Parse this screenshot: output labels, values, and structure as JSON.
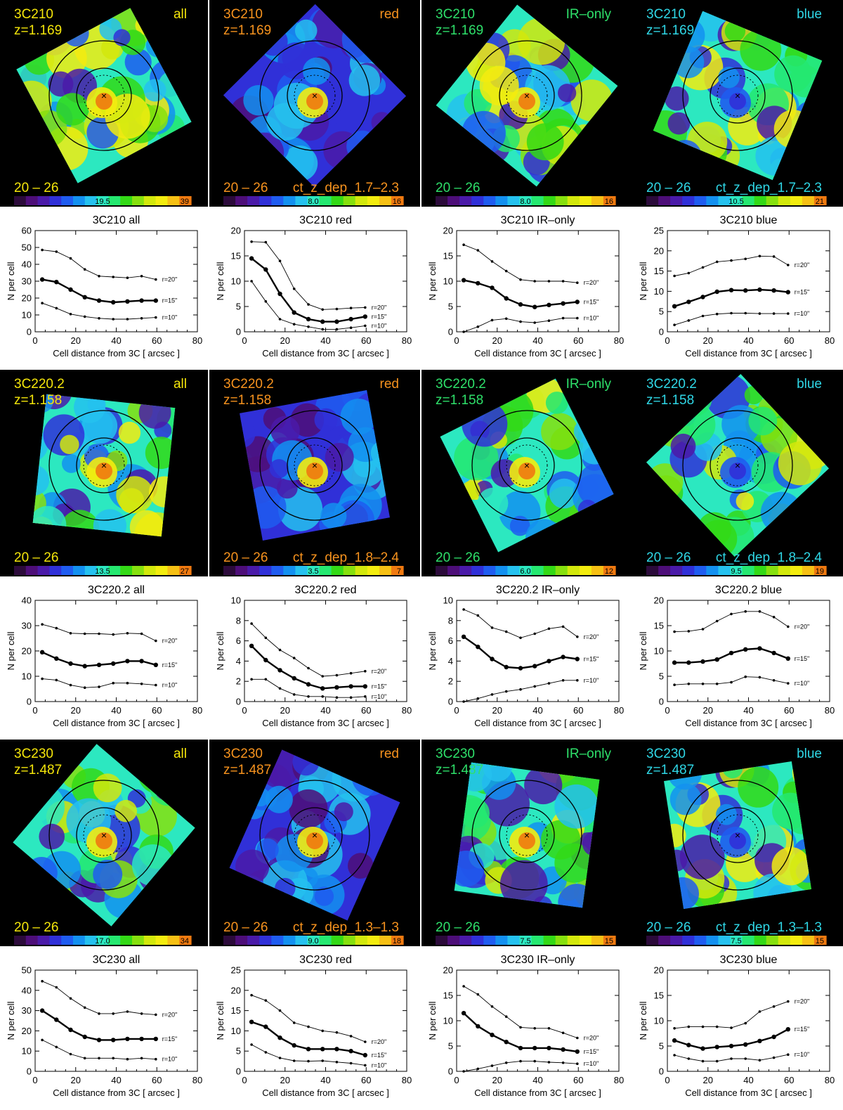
{
  "figure": {
    "xlabel": "Cell distance from 3C  [ arcsec ]",
    "ylabel": "N per cell",
    "xlim": [
      0,
      80
    ],
    "xticks": [
      0,
      20,
      40,
      60,
      80
    ],
    "radius_labels": [
      "r=10\"",
      "r=15\"",
      "r=20\""
    ],
    "mag_range_label": "20 – 26",
    "x_values": [
      3.5,
      10.5,
      17.5,
      24.5,
      31.5,
      38.5,
      45.5,
      52.5,
      59.5
    ]
  },
  "colors": {
    "all": "#f5e60a",
    "red": "#f7931e",
    "IR-only": "#2ee06a",
    "blue": "#2fd7e6"
  },
  "colorbar_colors": [
    "#2b0a3a",
    "#4d0e78",
    "#4a1aa8",
    "#3030d8",
    "#1f5cf0",
    "#1390f0",
    "#25c1ef",
    "#2ce8c0",
    "#25e870",
    "#33d916",
    "#86e00e",
    "#d2e80c",
    "#f3ec0f",
    "#f6c014",
    "#f07a10"
  ],
  "chart_data": [
    {
      "type": "line",
      "id": "3C210-all",
      "source": "3C210",
      "redshift": "z=1.169",
      "panel": "all",
      "title": "3C210  all",
      "ylim": [
        0,
        60
      ],
      "yticks": [
        0,
        10,
        20,
        30,
        40,
        50,
        60
      ],
      "colorbar_mid": "19.5",
      "colorbar_max": "39",
      "ct_label": "",
      "series": [
        {
          "name": "r=20\"",
          "values": [
            48.5,
            47.5,
            43.5,
            37,
            33,
            32.5,
            32,
            33,
            31
          ]
        },
        {
          "name": "r=15\"",
          "values": [
            31,
            29.5,
            25,
            20.5,
            18.5,
            17.5,
            18,
            18.5,
            18.5
          ]
        },
        {
          "name": "r=10\"",
          "values": [
            17,
            14,
            10.5,
            9,
            8,
            7.5,
            7.5,
            8,
            8.5
          ]
        }
      ]
    },
    {
      "type": "line",
      "id": "3C210-red",
      "source": "3C210",
      "redshift": "z=1.169",
      "panel": "red",
      "title": "3C210  red",
      "ylim": [
        0,
        20
      ],
      "yticks": [
        0,
        5,
        10,
        15,
        20
      ],
      "colorbar_mid": "8.0",
      "colorbar_max": "16",
      "ct_label": "ct_z_dep_1.7–2.3",
      "series": [
        {
          "name": "r=20\"",
          "values": [
            17.8,
            17.7,
            14,
            8.5,
            5.4,
            4.4,
            4.5,
            4.7,
            4.8
          ]
        },
        {
          "name": "r=15\"",
          "values": [
            14.5,
            12.3,
            7.5,
            3.8,
            2.5,
            2,
            2,
            2.5,
            3
          ]
        },
        {
          "name": "r=10\"",
          "values": [
            10,
            6,
            2.5,
            1.5,
            1,
            0.5,
            0.5,
            0.8,
            1.2
          ]
        }
      ]
    },
    {
      "type": "line",
      "id": "3C210-IR-only",
      "source": "3C210",
      "redshift": "z=1.169",
      "panel": "IR-only",
      "title": "3C210  IR–only",
      "ylim": [
        0,
        20
      ],
      "yticks": [
        0,
        5,
        10,
        15,
        20
      ],
      "colorbar_mid": "8.0",
      "colorbar_max": "16",
      "ct_label": "",
      "series": [
        {
          "name": "r=20\"",
          "values": [
            17.2,
            16.1,
            13.9,
            12,
            10.3,
            10,
            10,
            10,
            9.7
          ]
        },
        {
          "name": "r=15\"",
          "values": [
            10.2,
            9.6,
            8.7,
            6.6,
            5.4,
            4.9,
            5.3,
            5.6,
            5.9
          ]
        },
        {
          "name": "r=10\"",
          "values": [
            0,
            1,
            2.3,
            2.6,
            2,
            1.8,
            2.2,
            2.7,
            2.7
          ]
        }
      ]
    },
    {
      "type": "line",
      "id": "3C210-blue",
      "source": "3C210",
      "redshift": "z=1.169",
      "panel": "blue",
      "title": "3C210  blue",
      "ylim": [
        0,
        25
      ],
      "yticks": [
        0,
        5,
        10,
        15,
        20,
        25
      ],
      "colorbar_mid": "10.5",
      "colorbar_max": "21",
      "ct_label": "ct_z_dep_1.7–2.3",
      "series": [
        {
          "name": "r=20\"",
          "values": [
            13.8,
            14.5,
            15.9,
            17.3,
            17.6,
            18,
            18.7,
            18.6,
            16.5
          ]
        },
        {
          "name": "r=15\"",
          "values": [
            6.3,
            7.4,
            8.6,
            9.9,
            10.3,
            10.2,
            10.4,
            10.2,
            9.8
          ]
        },
        {
          "name": "r=10\"",
          "values": [
            1.7,
            2.8,
            3.9,
            4.4,
            4.6,
            4.6,
            4.5,
            4.5,
            4.5
          ]
        }
      ]
    },
    {
      "type": "line",
      "id": "3C220.2-all",
      "source": "3C220.2",
      "redshift": "z=1.158",
      "panel": "all",
      "title": "3C220.2  all",
      "ylim": [
        0,
        40
      ],
      "yticks": [
        0,
        10,
        20,
        30,
        40
      ],
      "colorbar_mid": "13.5",
      "colorbar_max": "27",
      "ct_label": "",
      "series": [
        {
          "name": "r=20\"",
          "values": [
            30.5,
            29,
            27,
            26.8,
            26.8,
            26.5,
            27,
            26.8,
            24
          ]
        },
        {
          "name": "r=15\"",
          "values": [
            19.5,
            17,
            15,
            14,
            14.5,
            15,
            16,
            16,
            14.5
          ]
        },
        {
          "name": "r=10\"",
          "values": [
            9,
            8.5,
            6.5,
            5.5,
            5.8,
            7.3,
            7.3,
            7,
            6.5
          ]
        }
      ]
    },
    {
      "type": "line",
      "id": "3C220.2-red",
      "source": "3C220.2",
      "redshift": "z=1.158",
      "panel": "red",
      "title": "3C220.2  red",
      "ylim": [
        0,
        10
      ],
      "yticks": [
        0,
        2,
        4,
        6,
        8,
        10
      ],
      "colorbar_mid": "3.5",
      "colorbar_max": "7",
      "ct_label": "ct_z_dep_1.8–2.4",
      "series": [
        {
          "name": "r=20\"",
          "values": [
            7.7,
            6.3,
            5.1,
            4.3,
            3.3,
            2.5,
            2.6,
            2.8,
            3
          ]
        },
        {
          "name": "r=15\"",
          "values": [
            5.5,
            4.1,
            3.1,
            2.3,
            1.7,
            1.3,
            1.4,
            1.5,
            1.5
          ]
        },
        {
          "name": "r=10\"",
          "values": [
            2.2,
            2.2,
            1.3,
            0.7,
            0.5,
            0.5,
            0.4,
            0.4,
            0.5
          ]
        }
      ]
    },
    {
      "type": "line",
      "id": "3C220.2-IR-only",
      "source": "3C220.2",
      "redshift": "z=1.158",
      "panel": "IR-only",
      "title": "3C220.2  IR–only",
      "ylim": [
        0,
        10
      ],
      "yticks": [
        0,
        2,
        4,
        6,
        8,
        10
      ],
      "colorbar_mid": "6.0",
      "colorbar_max": "12",
      "ct_label": "",
      "series": [
        {
          "name": "r=20\"",
          "values": [
            9.1,
            8.5,
            7.3,
            6.9,
            6.3,
            6.7,
            7.2,
            7.4,
            6.4
          ]
        },
        {
          "name": "r=15\"",
          "values": [
            6.4,
            5.4,
            4.2,
            3.4,
            3.3,
            3.5,
            4,
            4.4,
            4.2
          ]
        },
        {
          "name": "r=10\"",
          "values": [
            0,
            0.3,
            0.7,
            1,
            1.2,
            1.5,
            1.8,
            2.1,
            2.1
          ]
        }
      ]
    },
    {
      "type": "line",
      "id": "3C220.2-blue",
      "source": "3C220.2",
      "redshift": "z=1.158",
      "panel": "blue",
      "title": "3C220.2  blue",
      "ylim": [
        0,
        20
      ],
      "yticks": [
        0,
        5,
        10,
        15,
        20
      ],
      "colorbar_mid": "9.5",
      "colorbar_max": "19",
      "ct_label": "ct_z_dep_1.8–2.4",
      "series": [
        {
          "name": "r=20\"",
          "values": [
            13.8,
            13.9,
            14.3,
            15.9,
            17.3,
            17.8,
            17.8,
            16.7,
            14.8
          ]
        },
        {
          "name": "r=15\"",
          "values": [
            7.7,
            7.7,
            7.9,
            8.3,
            9.6,
            10.3,
            10.5,
            9.6,
            8.5
          ]
        },
        {
          "name": "r=10\"",
          "values": [
            3.3,
            3.5,
            3.5,
            3.5,
            3.8,
            4.9,
            4.8,
            4.2,
            3.6
          ]
        }
      ]
    },
    {
      "type": "line",
      "id": "3C230-all",
      "source": "3C230",
      "redshift": "z=1.487",
      "panel": "all",
      "title": "3C230  all",
      "ylim": [
        0,
        50
      ],
      "yticks": [
        0,
        10,
        20,
        30,
        40,
        50
      ],
      "colorbar_mid": "17.0",
      "colorbar_max": "34",
      "ct_label": "",
      "series": [
        {
          "name": "r=20\"",
          "values": [
            44.5,
            41.5,
            36,
            31.5,
            28.5,
            28.5,
            29.5,
            28.5,
            28
          ]
        },
        {
          "name": "r=15\"",
          "values": [
            30,
            25.5,
            20.5,
            17,
            15.5,
            15.5,
            16,
            16,
            16
          ]
        },
        {
          "name": "r=10\"",
          "values": [
            15.5,
            12,
            8.5,
            6.5,
            6.5,
            6.5,
            6,
            6.5,
            6
          ]
        }
      ]
    },
    {
      "type": "line",
      "id": "3C230-red",
      "source": "3C230",
      "redshift": "z=1.487",
      "panel": "red",
      "title": "3C230  red",
      "ylim": [
        0,
        25
      ],
      "yticks": [
        0,
        5,
        10,
        15,
        20,
        25
      ],
      "colorbar_mid": "9.0",
      "colorbar_max": "18",
      "ct_label": "ct_z_dep_1.3–1.3",
      "series": [
        {
          "name": "r=20\"",
          "values": [
            18.8,
            17.5,
            15,
            12,
            11,
            10,
            9.6,
            8.7,
            7.3
          ]
        },
        {
          "name": "r=15\"",
          "values": [
            12.2,
            11,
            8.3,
            6.4,
            5.5,
            5.5,
            5.5,
            5,
            4
          ]
        },
        {
          "name": "r=10\"",
          "values": [
            6.6,
            4.7,
            3.3,
            2.6,
            2.5,
            2.6,
            2.3,
            2,
            1.5
          ]
        }
      ]
    },
    {
      "type": "line",
      "id": "3C230-IR-only",
      "source": "3C230",
      "redshift": "z=1.487",
      "panel": "IR-only",
      "title": "3C230  IR–only",
      "ylim": [
        0,
        20
      ],
      "yticks": [
        0,
        5,
        10,
        15,
        20
      ],
      "colorbar_mid": "7.5",
      "colorbar_max": "15",
      "ct_label": "",
      "series": [
        {
          "name": "r=20\"",
          "values": [
            16.8,
            15.2,
            12.8,
            10.8,
            8.7,
            8.5,
            8.5,
            7.6,
            6.6
          ]
        },
        {
          "name": "r=15\"",
          "values": [
            11.5,
            8.9,
            7.2,
            5.8,
            4.6,
            4.6,
            4.6,
            4.3,
            3.9
          ]
        },
        {
          "name": "r=10\"",
          "values": [
            0,
            0.5,
            1.1,
            1.7,
            2,
            2,
            1.8,
            1.7,
            1.5
          ]
        }
      ]
    },
    {
      "type": "line",
      "id": "3C230-blue",
      "source": "3C230",
      "redshift": "z=1.487",
      "panel": "blue",
      "title": "3C230  blue",
      "ylim": [
        0,
        20
      ],
      "yticks": [
        0,
        5,
        10,
        15,
        20
      ],
      "colorbar_mid": "7.5",
      "colorbar_max": "15",
      "ct_label": "ct_z_dep_1.3–1.3",
      "series": [
        {
          "name": "r=20\"",
          "values": [
            8.5,
            8.8,
            8.8,
            8.8,
            8.6,
            9.5,
            11.8,
            12.8,
            13.8
          ]
        },
        {
          "name": "r=15\"",
          "values": [
            6.1,
            5.2,
            4.5,
            4.8,
            5,
            5.3,
            6,
            6.8,
            8.3
          ]
        },
        {
          "name": "r=10\"",
          "values": [
            3.2,
            2.5,
            2,
            2,
            2.5,
            2.5,
            2.2,
            2.7,
            3.3
          ]
        }
      ]
    }
  ]
}
